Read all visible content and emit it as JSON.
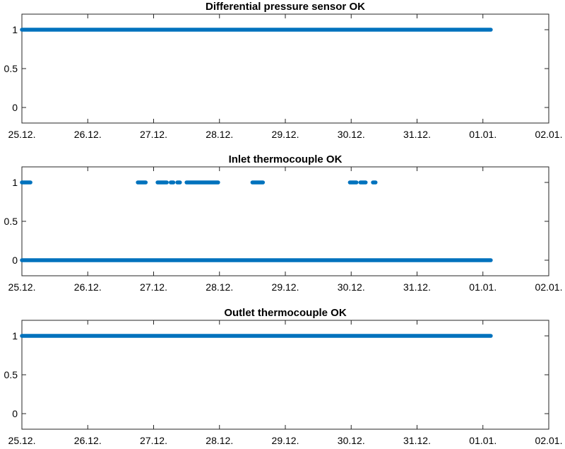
{
  "chart_data": [
    {
      "type": "scatter",
      "title": "Differential pressure sensor OK",
      "xlabel": "",
      "ylabel": "",
      "x_tick_labels": [
        "25.12.",
        "26.12.",
        "27.12.",
        "28.12.",
        "29.12.",
        "30.12.",
        "31.12.",
        "01.01.",
        "02.01."
      ],
      "xlim": [
        0,
        8
      ],
      "x_units": "days since 25.12.",
      "ylim": [
        -0.2,
        1.2
      ],
      "y_ticks": [
        0,
        0.5,
        1
      ],
      "y_tick_labels": [
        "0",
        "0.5",
        "1"
      ],
      "grid": false,
      "marker_color": "#0072BD",
      "series": [
        {
          "values_segments": [
            {
              "x_start": 0.0,
              "x_end": 7.12,
              "y": 1
            }
          ]
        }
      ]
    },
    {
      "type": "scatter",
      "title": "Inlet thermocouple OK",
      "xlabel": "",
      "ylabel": "",
      "x_tick_labels": [
        "25.12.",
        "26.12.",
        "27.12.",
        "28.12.",
        "29.12.",
        "30.12.",
        "31.12.",
        "01.01.",
        "02.01."
      ],
      "xlim": [
        0,
        8
      ],
      "x_units": "days since 25.12.",
      "ylim": [
        -0.2,
        1.2
      ],
      "y_ticks": [
        0,
        0.5,
        1
      ],
      "y_tick_labels": [
        "0",
        "0.5",
        "1"
      ],
      "grid": false,
      "marker_color": "#0072BD",
      "series": [
        {
          "values_segments": [
            {
              "x_start": 0.0,
              "x_end": 7.12,
              "y": 0
            },
            {
              "x_start": 0.0,
              "x_end": 0.13,
              "y": 1
            },
            {
              "x_start": 1.76,
              "x_end": 1.88,
              "y": 1
            },
            {
              "x_start": 2.06,
              "x_end": 2.2,
              "y": 1
            },
            {
              "x_start": 2.26,
              "x_end": 2.3,
              "y": 1
            },
            {
              "x_start": 2.36,
              "x_end": 2.4,
              "y": 1
            },
            {
              "x_start": 2.5,
              "x_end": 2.98,
              "y": 1
            },
            {
              "x_start": 3.5,
              "x_end": 3.66,
              "y": 1
            },
            {
              "x_start": 4.98,
              "x_end": 5.08,
              "y": 1
            },
            {
              "x_start": 5.14,
              "x_end": 5.22,
              "y": 1
            },
            {
              "x_start": 5.33,
              "x_end": 5.37,
              "y": 1
            }
          ]
        }
      ]
    },
    {
      "type": "scatter",
      "title": "Outlet thermocouple OK",
      "xlabel": "",
      "ylabel": "",
      "x_tick_labels": [
        "25.12.",
        "26.12.",
        "27.12.",
        "28.12.",
        "29.12.",
        "30.12.",
        "31.12.",
        "01.01.",
        "02.01."
      ],
      "xlim": [
        0,
        8
      ],
      "x_units": "days since 25.12.",
      "ylim": [
        -0.2,
        1.2
      ],
      "y_ticks": [
        0,
        0.5,
        1
      ],
      "y_tick_labels": [
        "0",
        "0.5",
        "1"
      ],
      "grid": false,
      "marker_color": "#0072BD",
      "series": [
        {
          "values_segments": [
            {
              "x_start": 0.0,
              "x_end": 7.12,
              "y": 1
            }
          ]
        }
      ]
    }
  ]
}
